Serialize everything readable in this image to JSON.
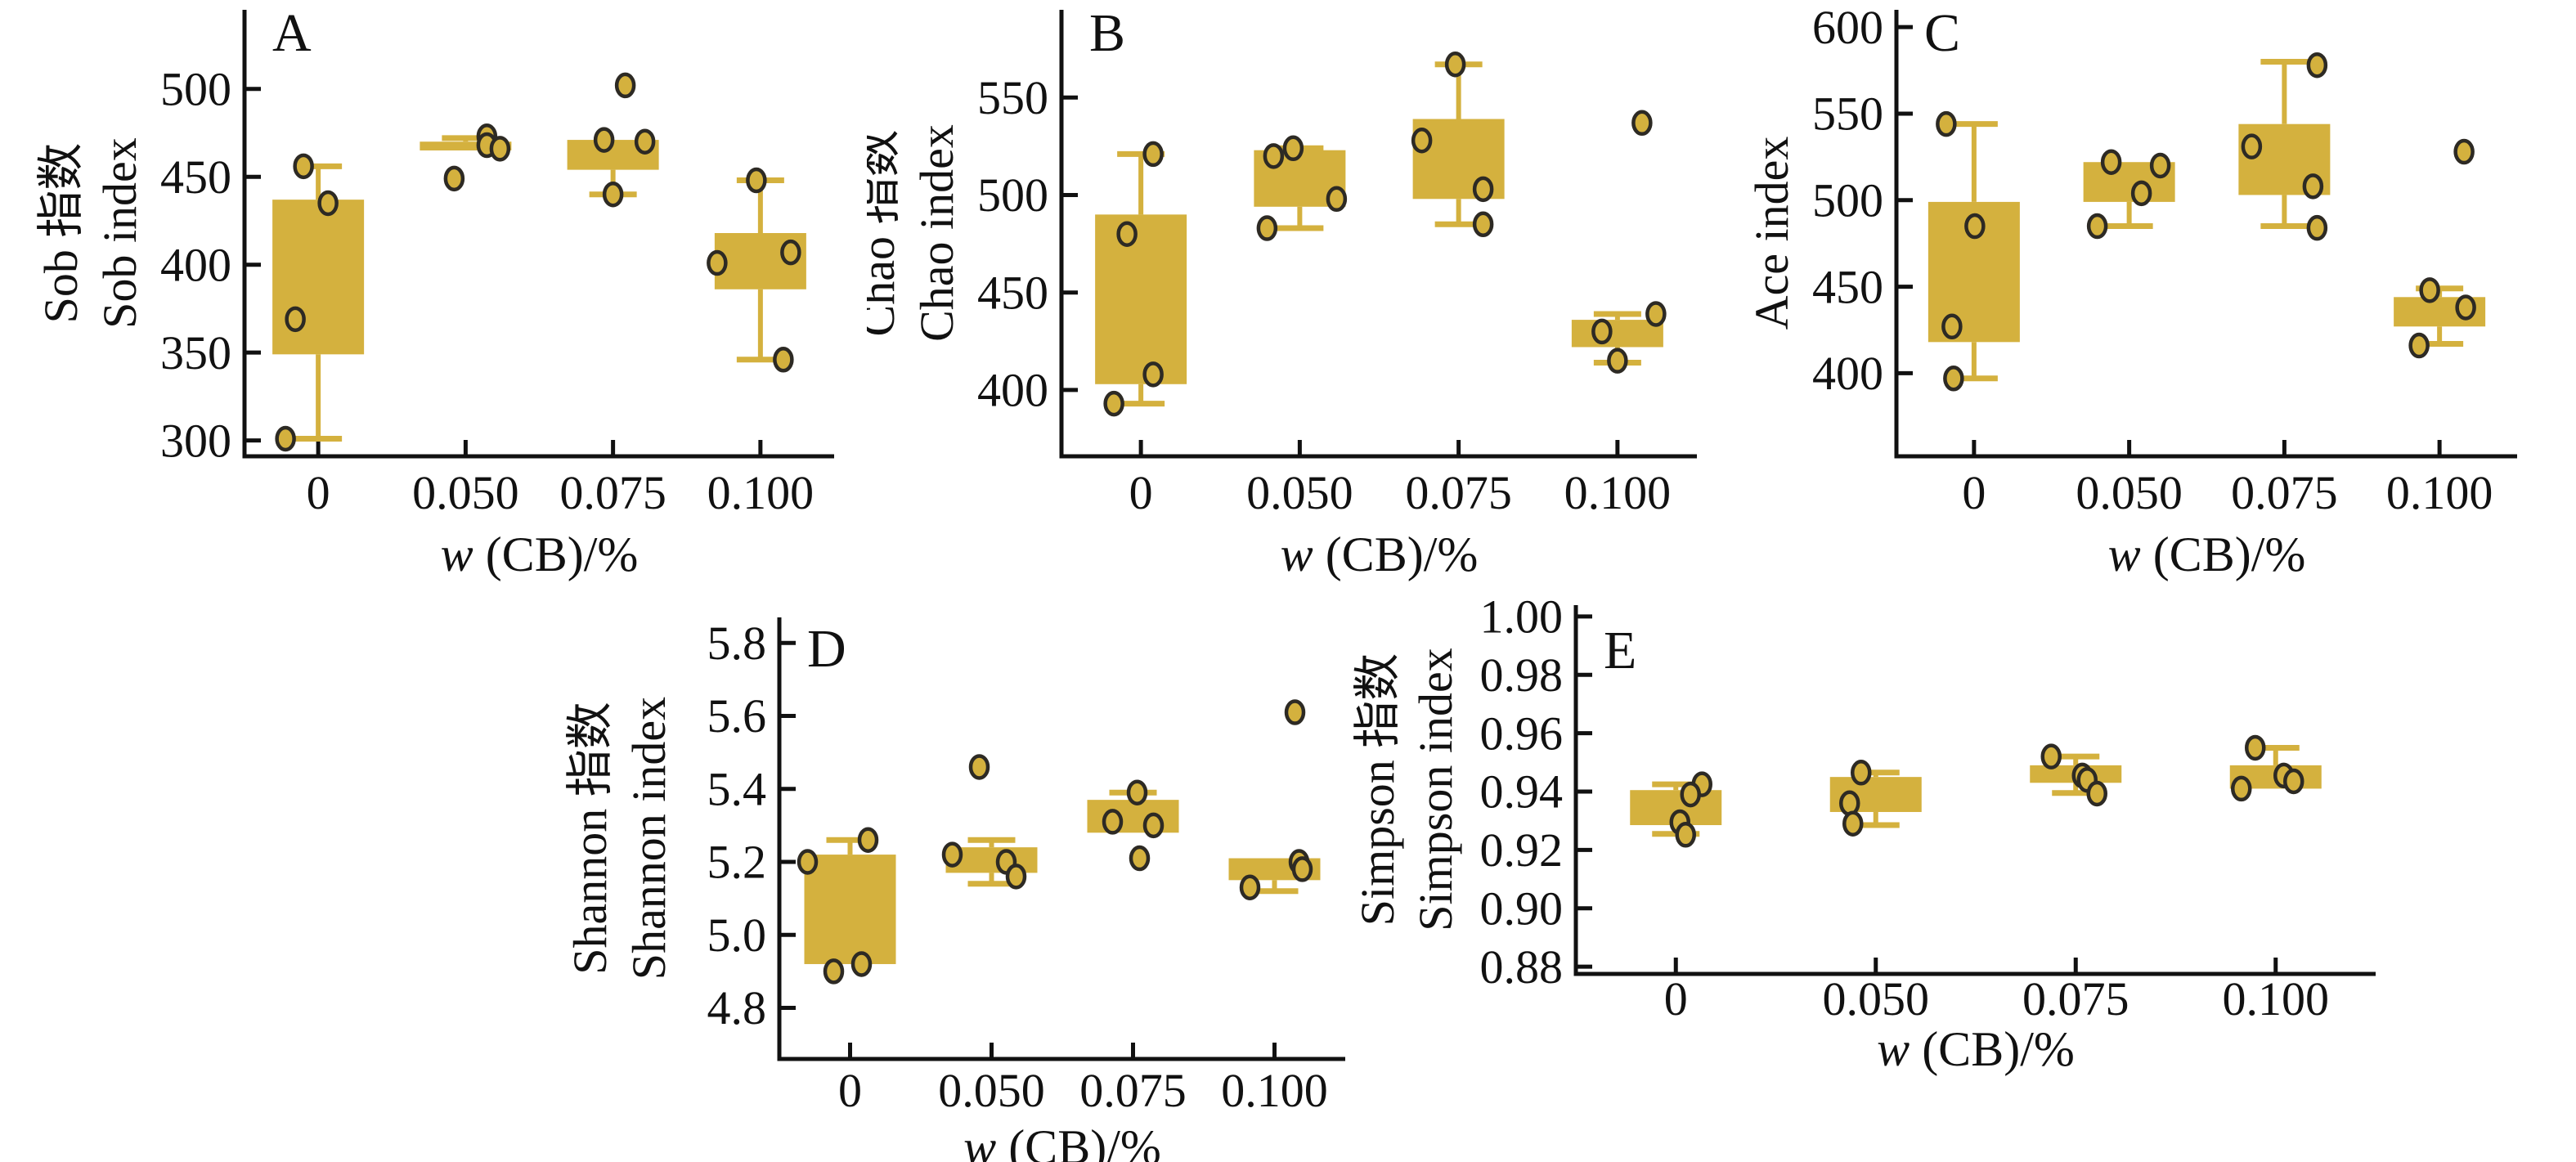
{
  "figure_title": "",
  "chart_data": {
    "type": "box",
    "grid": false,
    "legend": "none",
    "colors": {
      "box_fill": "#d4b13e",
      "whisker": "#d4b13e",
      "point_fill": "#d4b13e",
      "point_stroke": "#2d2a24",
      "axis": "#111111"
    },
    "xlabel_italic": "w",
    "xlabel_rest": " (CB)/%",
    "xticks": [
      "0",
      "0.050",
      "0.075",
      "0.100"
    ],
    "panels": [
      {
        "letter": "A",
        "ylabel_zh": "Sob 指数",
        "ylabel_en": "Sob index",
        "ydomain": [
          291,
          545
        ],
        "yticks": [
          {
            "label": "300",
            "v": 300
          },
          {
            "label": "350",
            "v": 350
          },
          {
            "label": "400",
            "v": 400
          },
          {
            "label": "450",
            "v": 450
          },
          {
            "label": "500",
            "v": 500
          }
        ],
        "groups": [
          {
            "x": "0",
            "low": 301,
            "q1": 349,
            "q3": 437,
            "high": 456,
            "median": null,
            "points": [
              {
                "v": 456,
                "o": -18
              },
              {
                "v": 435,
                "o": 12
              },
              {
                "v": 369,
                "o": -28
              },
              {
                "v": 301,
                "o": -40
              }
            ]
          },
          {
            "x": "0.050",
            "low": null,
            "q1": 465,
            "q3": 470,
            "high": 472,
            "median": null,
            "points": [
              {
                "v": 473,
                "o": 26
              },
              {
                "v": 468,
                "o": 26
              },
              {
                "v": 466,
                "o": 42
              },
              {
                "v": 449,
                "o": -14
              }
            ]
          },
          {
            "x": "0.075",
            "low": 440,
            "q1": 454,
            "q3": 471,
            "high": null,
            "median": null,
            "points": [
              {
                "v": 502,
                "o": 15
              },
              {
                "v": 471,
                "o": -11
              },
              {
                "v": 470,
                "o": 39
              },
              {
                "v": 440,
                "o": 0
              }
            ]
          },
          {
            "x": "0.100",
            "low": 346,
            "q1": 386,
            "q3": 418,
            "high": 448,
            "median": null,
            "points": [
              {
                "v": 448,
                "o": -5
              },
              {
                "v": 407,
                "o": 37
              },
              {
                "v": 401,
                "o": -53
              },
              {
                "v": 346,
                "o": 28
              }
            ]
          }
        ]
      },
      {
        "letter": "B",
        "ylabel_zh": "Chao 指数",
        "ylabel_en": "Chao index",
        "ydomain": [
          366,
          595
        ],
        "yticks": [
          {
            "label": "400",
            "v": 400
          },
          {
            "label": "450",
            "v": 450
          },
          {
            "label": "500",
            "v": 500
          },
          {
            "label": "550",
            "v": 550
          }
        ],
        "groups": [
          {
            "x": "0",
            "low": 393,
            "q1": 403,
            "q3": 490,
            "high": 521,
            "median": null,
            "points": [
              {
                "v": 521,
                "o": 15
              },
              {
                "v": 480,
                "o": -17
              },
              {
                "v": 408,
                "o": 15
              },
              {
                "v": 393,
                "o": -33
              }
            ]
          },
          {
            "x": "0.050",
            "low": 483,
            "q1": 494,
            "q3": 523,
            "high": 524,
            "median": null,
            "points": [
              {
                "v": 524,
                "o": -8
              },
              {
                "v": 520,
                "o": -32
              },
              {
                "v": 498,
                "o": 45
              },
              {
                "v": 483,
                "o": -40
              }
            ]
          },
          {
            "x": "0.075",
            "low": 485,
            "q1": 498,
            "q3": 539,
            "high": 567,
            "median": null,
            "points": [
              {
                "v": 567,
                "o": -4
              },
              {
                "v": 528,
                "o": -45
              },
              {
                "v": 503,
                "o": 30
              },
              {
                "v": 485,
                "o": 30
              }
            ]
          },
          {
            "x": "0.100",
            "low": 414,
            "q1": 422,
            "q3": 436,
            "high": 439,
            "median": null,
            "points": [
              {
                "v": 537,
                "o": 30
              },
              {
                "v": 439,
                "o": 47
              },
              {
                "v": 430,
                "o": -19
              },
              {
                "v": 415,
                "o": 0
              }
            ]
          }
        ]
      },
      {
        "letter": "C",
        "ylabel_zh": "Ace 指数",
        "ylabel_en": "Ace index",
        "ydomain": [
          352,
          610
        ],
        "yticks": [
          {
            "label": "400",
            "v": 400
          },
          {
            "label": "450",
            "v": 450
          },
          {
            "label": "500",
            "v": 500
          },
          {
            "label": "550",
            "v": 550
          },
          {
            "label": "600",
            "v": 600
          }
        ],
        "groups": [
          {
            "x": "0",
            "low": 397,
            "q1": 418,
            "q3": 499,
            "high": 544,
            "median": null,
            "points": [
              {
                "v": 544,
                "o": -34
              },
              {
                "v": 485,
                "o": 1
              },
              {
                "v": 427,
                "o": -27
              },
              {
                "v": 397,
                "o": -25
              }
            ]
          },
          {
            "x": "0.050",
            "low": 485,
            "q1": 499,
            "q3": 522,
            "high": null,
            "median": null,
            "points": [
              {
                "v": 522,
                "o": -22
              },
              {
                "v": 520,
                "o": 38
              },
              {
                "v": 504,
                "o": 15
              },
              {
                "v": 485,
                "o": -39
              }
            ]
          },
          {
            "x": "0.075",
            "low": 485,
            "q1": 503,
            "q3": 544,
            "high": 580,
            "median": null,
            "points": [
              {
                "v": 578,
                "o": 40
              },
              {
                "v": 531,
                "o": -40
              },
              {
                "v": 508,
                "o": 35
              },
              {
                "v": 484,
                "o": 40
              }
            ]
          },
          {
            "x": "0.100",
            "low": 417,
            "q1": 427,
            "q3": 444,
            "high": 449,
            "median": null,
            "points": [
              {
                "v": 528,
                "o": 30
              },
              {
                "v": 448,
                "o": -12
              },
              {
                "v": 438,
                "o": 32
              },
              {
                "v": 416,
                "o": -25
              }
            ]
          }
        ]
      },
      {
        "letter": "D",
        "ylabel_zh": "Shannon 指数",
        "ylabel_en": "Shannon index",
        "ydomain": [
          4.66,
          5.87
        ],
        "yticks": [
          {
            "label": "4.8",
            "v": 4.8
          },
          {
            "label": "5.0",
            "v": 5.0
          },
          {
            "label": "5.2",
            "v": 5.2
          },
          {
            "label": "5.4",
            "v": 5.4
          },
          {
            "label": "5.6",
            "v": 5.6
          },
          {
            "label": "5.8",
            "v": 5.8
          }
        ],
        "groups": [
          {
            "x": "0",
            "low": null,
            "q1": 4.92,
            "q3": 5.22,
            "high": 5.26,
            "median": null,
            "points": [
              {
                "v": 5.26,
                "o": 22
              },
              {
                "v": 5.2,
                "o": -52
              },
              {
                "v": 4.92,
                "o": 14
              },
              {
                "v": 4.9,
                "o": -20
              }
            ]
          },
          {
            "x": "0.050",
            "low": 5.14,
            "q1": 5.17,
            "q3": 5.24,
            "high": 5.26,
            "median": null,
            "points": [
              {
                "v": 5.46,
                "o": -15
              },
              {
                "v": 5.22,
                "o": -48
              },
              {
                "v": 5.2,
                "o": 18
              },
              {
                "v": 5.16,
                "o": 30
              }
            ]
          },
          {
            "x": "0.075",
            "low": null,
            "q1": 5.28,
            "q3": 5.37,
            "high": 5.39,
            "median": null,
            "points": [
              {
                "v": 5.39,
                "o": 5
              },
              {
                "v": 5.31,
                "o": -25
              },
              {
                "v": 5.3,
                "o": 25
              },
              {
                "v": 5.21,
                "o": 8
              }
            ]
          },
          {
            "x": "0.100",
            "low": 5.12,
            "q1": 5.15,
            "q3": 5.21,
            "high": null,
            "median": null,
            "points": [
              {
                "v": 5.61,
                "o": 25
              },
              {
                "v": 5.2,
                "o": 30
              },
              {
                "v": 5.18,
                "o": 34
              },
              {
                "v": 5.13,
                "o": -30
              }
            ]
          }
        ]
      },
      {
        "letter": "E",
        "ylabel_zh": "Simpson 指数",
        "ylabel_en": "Simpson index",
        "ydomain": [
          0.8775,
          1.0039
        ],
        "yticks": [
          {
            "label": "0.88",
            "v": 0.88
          },
          {
            "label": "0.90",
            "v": 0.9
          },
          {
            "label": "0.92",
            "v": 0.92
          },
          {
            "label": "0.94",
            "v": 0.94
          },
          {
            "label": "0.96",
            "v": 0.96
          },
          {
            "label": "0.98",
            "v": 0.98
          },
          {
            "label": "1.00",
            "v": 1.0
          }
        ],
        "groups": [
          {
            "x": "0",
            "low": 0.9255,
            "q1": 0.9285,
            "q3": 0.9405,
            "high": 0.9425,
            "median": null,
            "points": [
              {
                "v": 0.9425,
                "o": 32
              },
              {
                "v": 0.939,
                "o": 18
              },
              {
                "v": 0.9295,
                "o": 5
              },
              {
                "v": 0.9252,
                "o": 12
              }
            ]
          },
          {
            "x": "0.050",
            "low": 0.9285,
            "q1": 0.933,
            "q3": 0.945,
            "high": 0.9465,
            "median": null,
            "points": [
              {
                "v": 0.9465,
                "o": -18
              },
              {
                "v": 0.936,
                "o": -32
              },
              {
                "v": 0.929,
                "o": -28
              }
            ]
          },
          {
            "x": "0.075",
            "low": 0.9395,
            "q1": 0.943,
            "q3": 0.949,
            "high": 0.952,
            "median": null,
            "points": [
              {
                "v": 0.952,
                "o": -30
              },
              {
                "v": 0.9455,
                "o": 8
              },
              {
                "v": 0.944,
                "o": 14
              },
              {
                "v": 0.9393,
                "o": 26
              }
            ]
          },
          {
            "x": "0.100",
            "low": null,
            "q1": 0.941,
            "q3": 0.949,
            "high": 0.955,
            "median": null,
            "points": [
              {
                "v": 0.955,
                "o": -25
              },
              {
                "v": 0.9455,
                "o": 10
              },
              {
                "v": 0.9435,
                "o": 22
              },
              {
                "v": 0.941,
                "o": -42
              }
            ]
          }
        ]
      }
    ]
  }
}
